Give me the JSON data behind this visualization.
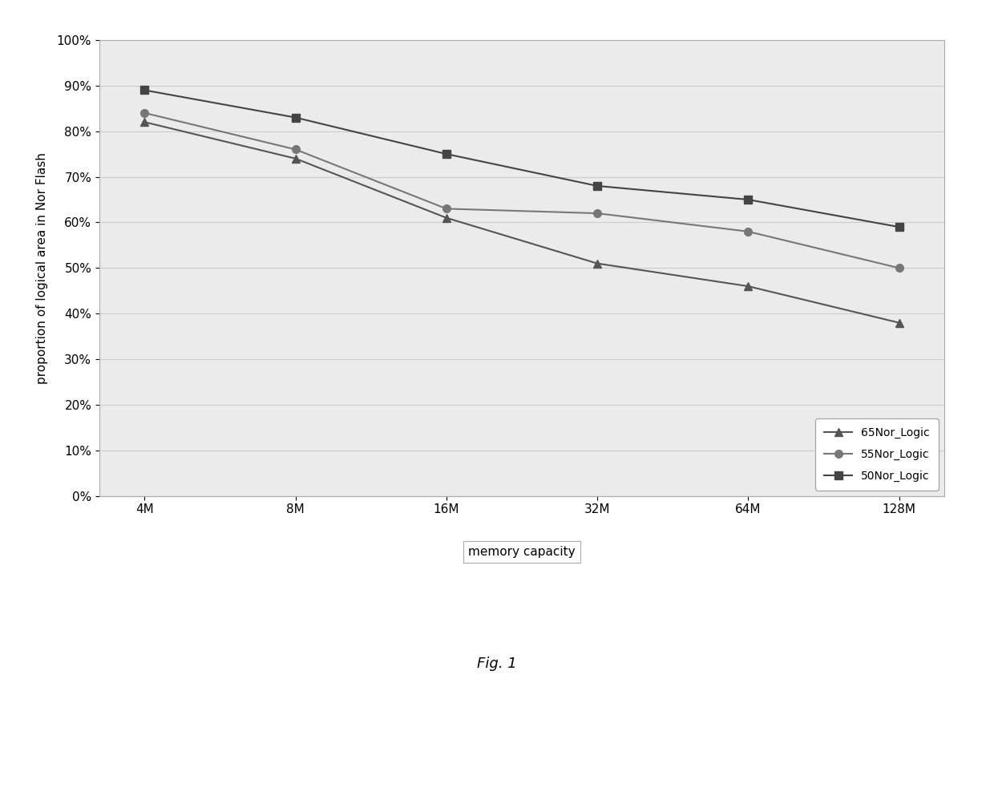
{
  "x_labels": [
    "4M",
    "8M",
    "16M",
    "32M",
    "64M",
    "128M"
  ],
  "x_values": [
    0,
    1,
    2,
    3,
    4,
    5
  ],
  "series": [
    {
      "label": "65Nor_Logic",
      "values": [
        0.82,
        0.74,
        0.61,
        0.51,
        0.46,
        0.38
      ],
      "color": "#555555",
      "marker": "^",
      "markersize": 7,
      "linewidth": 1.5
    },
    {
      "label": "55Nor_Logic",
      "values": [
        0.84,
        0.76,
        0.63,
        0.62,
        0.58,
        0.5
      ],
      "color": "#777777",
      "marker": "o",
      "markersize": 7,
      "linewidth": 1.5
    },
    {
      "label": "50Nor_Logic",
      "values": [
        0.89,
        0.83,
        0.75,
        0.68,
        0.65,
        0.59
      ],
      "color": "#444444",
      "marker": "s",
      "markersize": 7,
      "linewidth": 1.5
    }
  ],
  "ylabel": "proportion of logical area in Nor Flash",
  "xlabel": "memory capacity",
  "ylim": [
    0.0,
    1.0
  ],
  "yticks": [
    0.0,
    0.1,
    0.2,
    0.3,
    0.4,
    0.5,
    0.6,
    0.7,
    0.8,
    0.9,
    1.0
  ],
  "grid_color": "#cccccc",
  "plot_bg_color": "#ebebeb",
  "fig_caption": "Fig. 1",
  "axis_fontsize": 11,
  "tick_fontsize": 11,
  "legend_fontsize": 10,
  "xlabel_fontsize": 11
}
